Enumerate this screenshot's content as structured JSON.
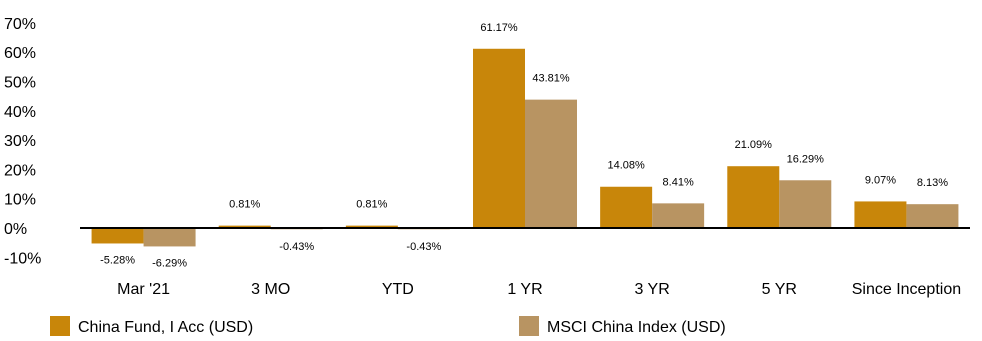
{
  "chart_data": {
    "type": "bar",
    "categories": [
      "Mar '21",
      "3 MO",
      "YTD",
      "1 YR",
      "3 YR",
      "5 YR",
      "Since Inception"
    ],
    "series": [
      {
        "name": "China Fund, I Acc (USD)",
        "values": [
          -5.28,
          0.81,
          0.81,
          61.17,
          14.08,
          21.09,
          9.07
        ],
        "labels": [
          "-5.28%",
          "0.81%",
          "0.81%",
          "61.17%",
          "14.08%",
          "21.09%",
          "9.07%"
        ],
        "color": "#C8860A"
      },
      {
        "name": "MSCI China Index (USD)",
        "values": [
          -6.29,
          -0.43,
          -0.43,
          43.81,
          8.41,
          16.29,
          8.13
        ],
        "labels": [
          "-6.29%",
          "-0.43%",
          "-0.43%",
          "43.81%",
          "8.41%",
          "16.29%",
          "8.13%"
        ],
        "color": "#B89462"
      }
    ],
    "yticks": [
      -10,
      0,
      10,
      20,
      30,
      40,
      50,
      60,
      70
    ],
    "ytick_labels": [
      "-10%",
      "0%",
      "10%",
      "20%",
      "30%",
      "40%",
      "50%",
      "60%",
      "70%"
    ],
    "ylim": [
      -10,
      70
    ],
    "grid": false,
    "legend": "bottom",
    "title": "",
    "xlabel": "",
    "ylabel": ""
  }
}
